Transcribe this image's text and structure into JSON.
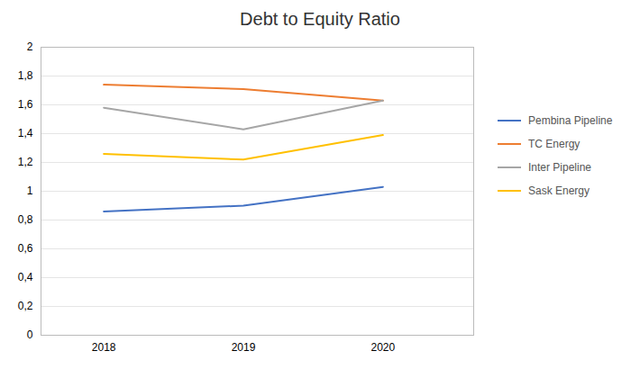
{
  "chart_data": {
    "type": "line",
    "title": "Debt to Equity  Ratio",
    "x": [
      2018,
      2019,
      2020
    ],
    "series": [
      {
        "name": "Pembina Pipeline",
        "color": "#4472C4",
        "values": [
          0.86,
          0.9,
          1.03
        ]
      },
      {
        "name": "TC Energy",
        "color": "#ED7D31",
        "values": [
          1.74,
          1.71,
          1.63
        ]
      },
      {
        "name": "Inter Pipeline",
        "color": "#A6A6A6",
        "values": [
          1.58,
          1.43,
          1.63
        ]
      },
      {
        "name": "Sask Energy",
        "color": "#FFC000",
        "values": [
          1.26,
          1.22,
          1.39
        ]
      }
    ],
    "xlim": [
      2017.55,
      2020.65
    ],
    "xticks": [
      2018,
      2019,
      2020
    ],
    "ylim": [
      0,
      2.0
    ],
    "yticks": [
      0,
      {
        "value": 0.2,
        "label": "0,2"
      },
      {
        "value": 0.4,
        "label": "0,4"
      },
      {
        "value": 0.6,
        "label": "0,6"
      },
      {
        "value": 0.8,
        "label": "0,8"
      },
      1,
      {
        "value": 1.2,
        "label": "1,2"
      },
      {
        "value": 1.4,
        "label": "1,4"
      },
      {
        "value": 1.6,
        "label": "1,6"
      },
      {
        "value": 1.8,
        "label": "1,8"
      },
      2
    ],
    "grid": true,
    "legend": "right"
  }
}
